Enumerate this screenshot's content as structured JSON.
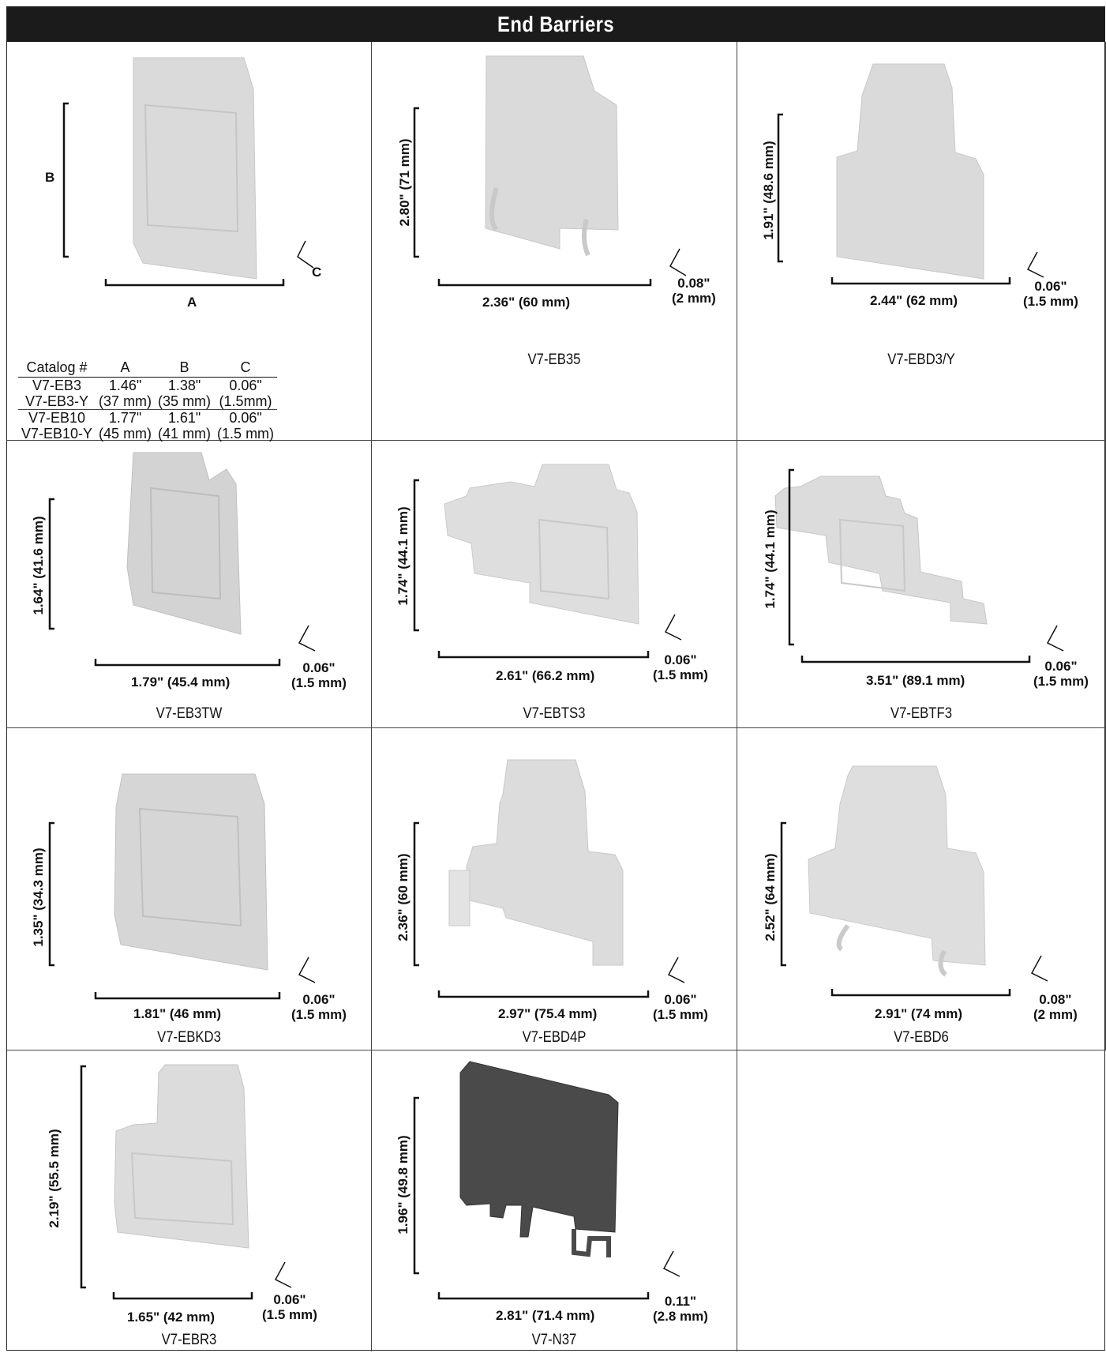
{
  "header": {
    "title": "End Barriers"
  },
  "colors": {
    "header_bg": "#1b1b1b",
    "part_gray": "#d9d9d9",
    "part_edge": "#c4c4c4",
    "n37_dark": "#4a4a4a"
  },
  "cells": [
    {
      "labels": {
        "b": "B",
        "a": "A",
        "c": "C"
      }
    },
    {
      "height": "2.80\" (71 mm)",
      "width": "2.36\" (60 mm)",
      "thick_in": "0.08\"",
      "thick_mm": "(2 mm)",
      "caption": "V7-EB35"
    },
    {
      "height": "1.91\" (48.6 mm)",
      "width": "2.44\" (62 mm)",
      "thick_in": "0.06\"",
      "thick_mm": "(1.5 mm)",
      "caption": "V7-EBD3/Y"
    },
    {
      "height": "1.64\" (41.6 mm)",
      "width": "1.79\" (45.4 mm)",
      "thick_in": "0.06\"",
      "thick_mm": "(1.5 mm)",
      "caption": "V7-EB3TW"
    },
    {
      "height": "1.74\" (44.1 mm)",
      "width": "2.61\" (66.2 mm)",
      "thick_in": "0.06\"",
      "thick_mm": "(1.5 mm)",
      "caption": "V7-EBTS3"
    },
    {
      "height": "1.74\" (44.1 mm)",
      "width": "3.51\" (89.1 mm)",
      "thick_in": "0.06\"",
      "thick_mm": "(1.5 mm)",
      "caption": "V7-EBTF3"
    },
    {
      "height": "1.35\" (34.3 mm)",
      "width": "1.81\" (46 mm)",
      "thick_in": "0.06\"",
      "thick_mm": "(1.5 mm)",
      "caption": "V7-EBKD3"
    },
    {
      "height": "2.36\" (60 mm)",
      "width": "2.97\" (75.4 mm)",
      "thick_in": "0.06\"",
      "thick_mm": "(1.5 mm)",
      "caption": "V7-EBD4P"
    },
    {
      "height": "2.52\" (64 mm)",
      "width": "2.91\" (74 mm)",
      "thick_in": "0.08\"",
      "thick_mm": "(2 mm)",
      "caption": "V7-EBD6"
    },
    {
      "height": "2.19\" (55.5 mm)",
      "width": "1.65\" (42 mm)",
      "thick_in": "0.06\"",
      "thick_mm": "(1.5 mm)",
      "caption": "V7-EBR3"
    },
    {
      "height": "1.96\" (49.8 mm)",
      "width": "2.81\" (71.4 mm)",
      "thick_in": "0.11\"",
      "thick_mm": "(2.8 mm)",
      "caption": "V7-N37"
    }
  ],
  "catalog_table": {
    "headers": [
      "Catalog #",
      "A",
      "B",
      "C"
    ],
    "rows": [
      [
        "V7-EB3",
        "1.46\"",
        "1.38\"",
        "0.06\""
      ],
      [
        "V7-EB3-Y",
        "(37 mm)",
        "(35 mm)",
        "(1.5mm)"
      ],
      [
        "V7-EB10",
        "1.77\"",
        "1.61\"",
        "0.06\""
      ],
      [
        "V7-EB10-Y",
        "(45 mm)",
        "(41 mm)",
        "(1.5 mm)"
      ]
    ]
  }
}
